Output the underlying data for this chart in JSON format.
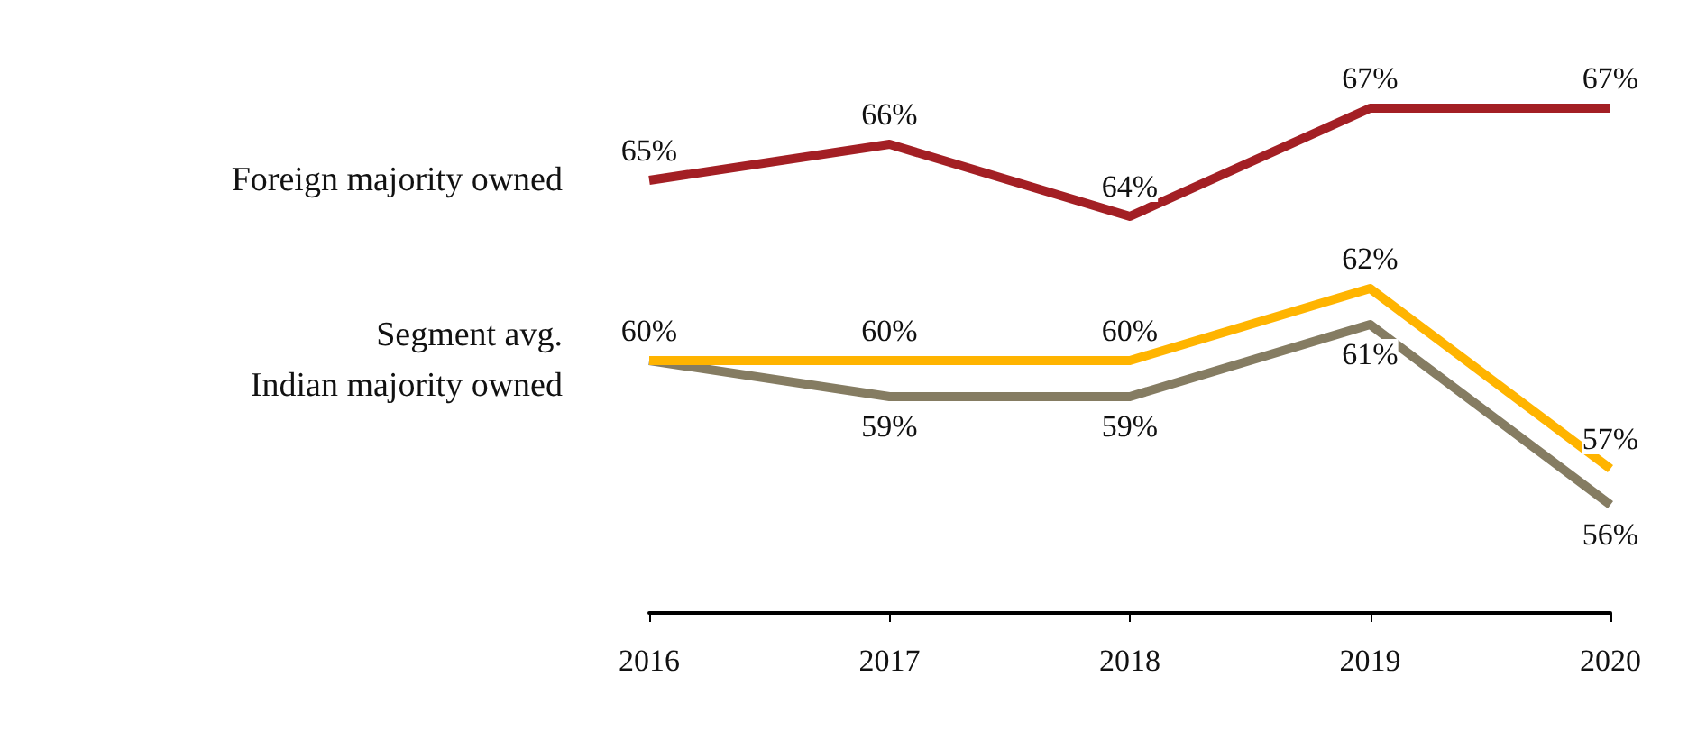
{
  "chart_data": {
    "type": "line",
    "categories": [
      "2016",
      "2017",
      "2018",
      "2019",
      "2020"
    ],
    "marker": "none",
    "grid": false,
    "legend": false,
    "series": [
      {
        "name": "Foreign majority owned",
        "color": "#a31f24",
        "values": [
          65,
          66,
          64,
          67,
          67
        ],
        "value_labels": [
          "65%",
          "66%",
          "64%",
          "67%",
          "67%"
        ]
      },
      {
        "name": "Segment avg.",
        "color": "#857c62",
        "values": [
          60,
          59,
          59,
          61,
          56
        ],
        "value_labels": [
          "60%",
          "59%",
          "59%",
          "61%",
          "56%"
        ]
      },
      {
        "name": "Indian majority owned",
        "color": "#ffb400",
        "values": [
          60,
          60,
          60,
          62,
          57
        ],
        "value_labels": [
          null,
          "60%",
          "60%",
          "62%",
          "57%"
        ]
      }
    ]
  }
}
